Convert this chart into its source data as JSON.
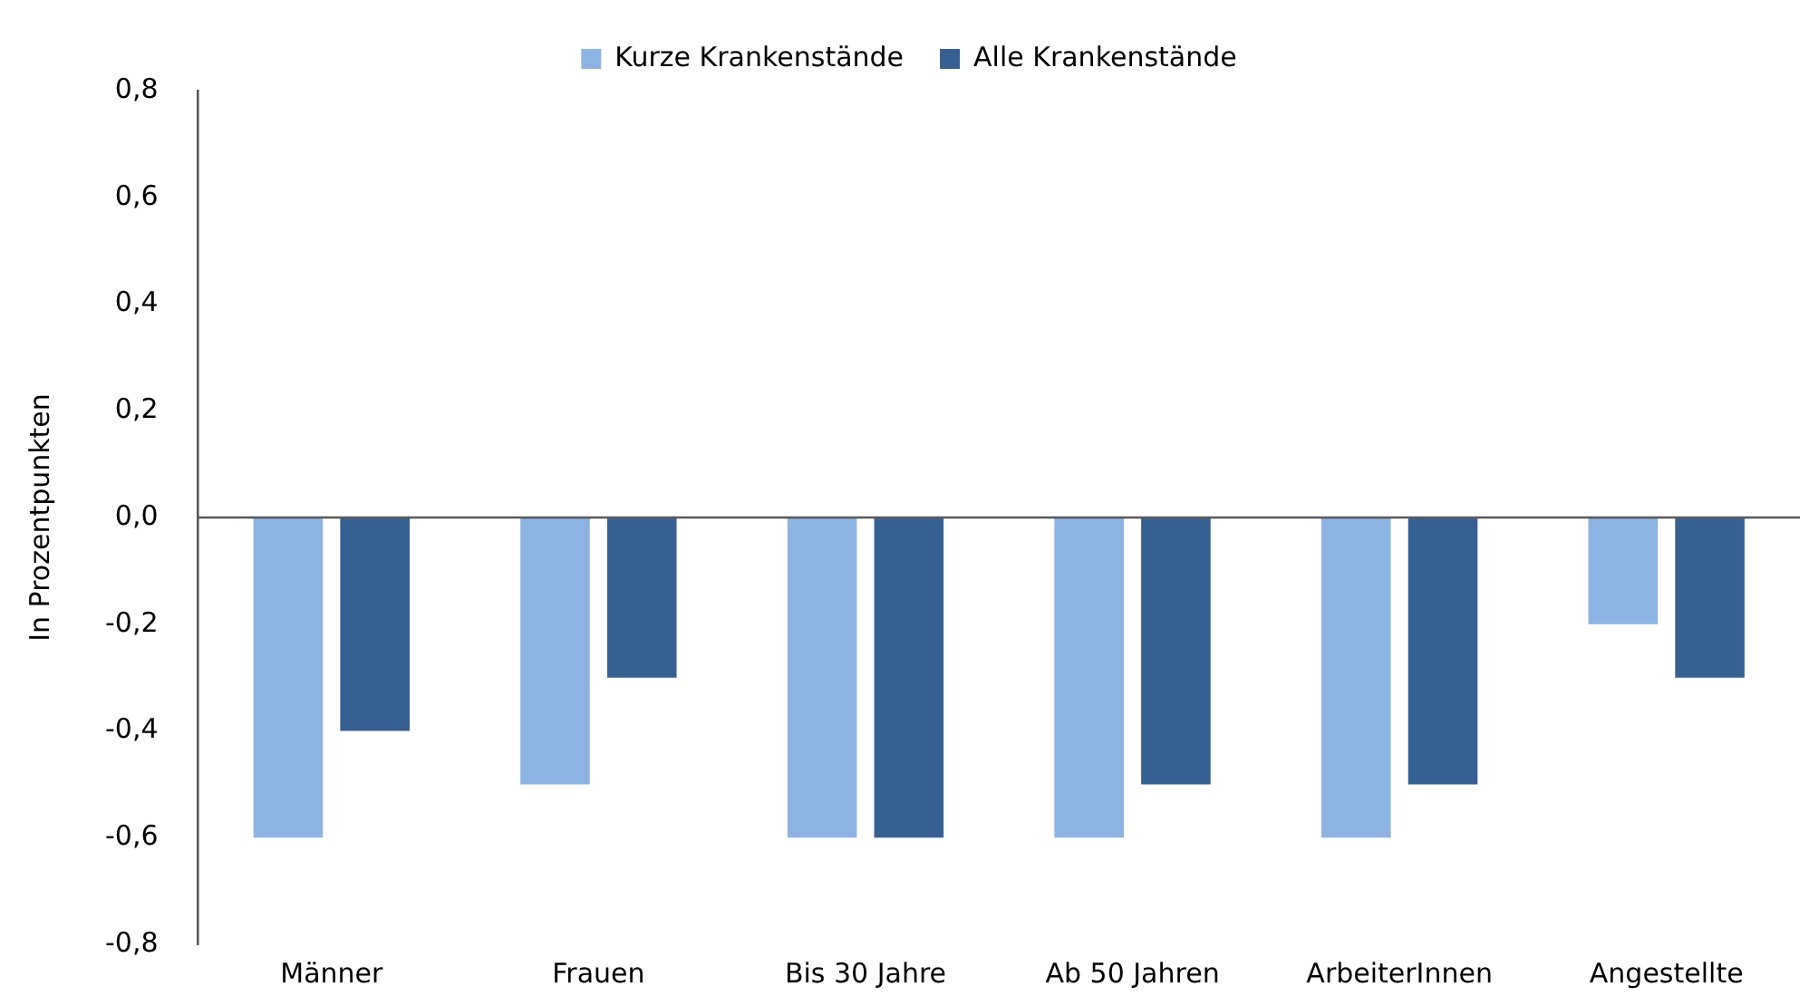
{
  "chart_data": {
    "type": "bar",
    "ylabel": "In Prozentpunkten",
    "categories": [
      "Männer",
      "Frauen",
      "Bis 30 Jahre",
      "Ab 50 Jahren",
      "ArbeiterInnen",
      "Angestellte"
    ],
    "series": [
      {
        "name": "Kurze Krankenstände",
        "color": "#8db3e2",
        "values": [
          -0.6,
          -0.5,
          -0.6,
          -0.6,
          -0.6,
          -0.2
        ]
      },
      {
        "name": "Alle Krankenstände",
        "color": "#376092",
        "values": [
          -0.4,
          -0.3,
          -0.6,
          -0.5,
          -0.5,
          -0.3
        ]
      }
    ],
    "ylim": [
      -0.8,
      0.8
    ],
    "yticks": [
      {
        "value": -0.8,
        "label": "-0,8"
      },
      {
        "value": -0.6,
        "label": "-0,6"
      },
      {
        "value": -0.4,
        "label": "-0,4"
      },
      {
        "value": -0.2,
        "label": "-0,2"
      },
      {
        "value": 0,
        "label": "0,0"
      },
      {
        "value": 0.2,
        "label": "0,2"
      },
      {
        "value": 0.4,
        "label": "0,4"
      },
      {
        "value": 0.6,
        "label": "0,6"
      },
      {
        "value": 0.8,
        "label": "0,8"
      }
    ],
    "ref_lines": [
      {
        "axis": "y",
        "value": 0,
        "color": "#595959"
      }
    ],
    "grid": false,
    "legend": "top"
  }
}
